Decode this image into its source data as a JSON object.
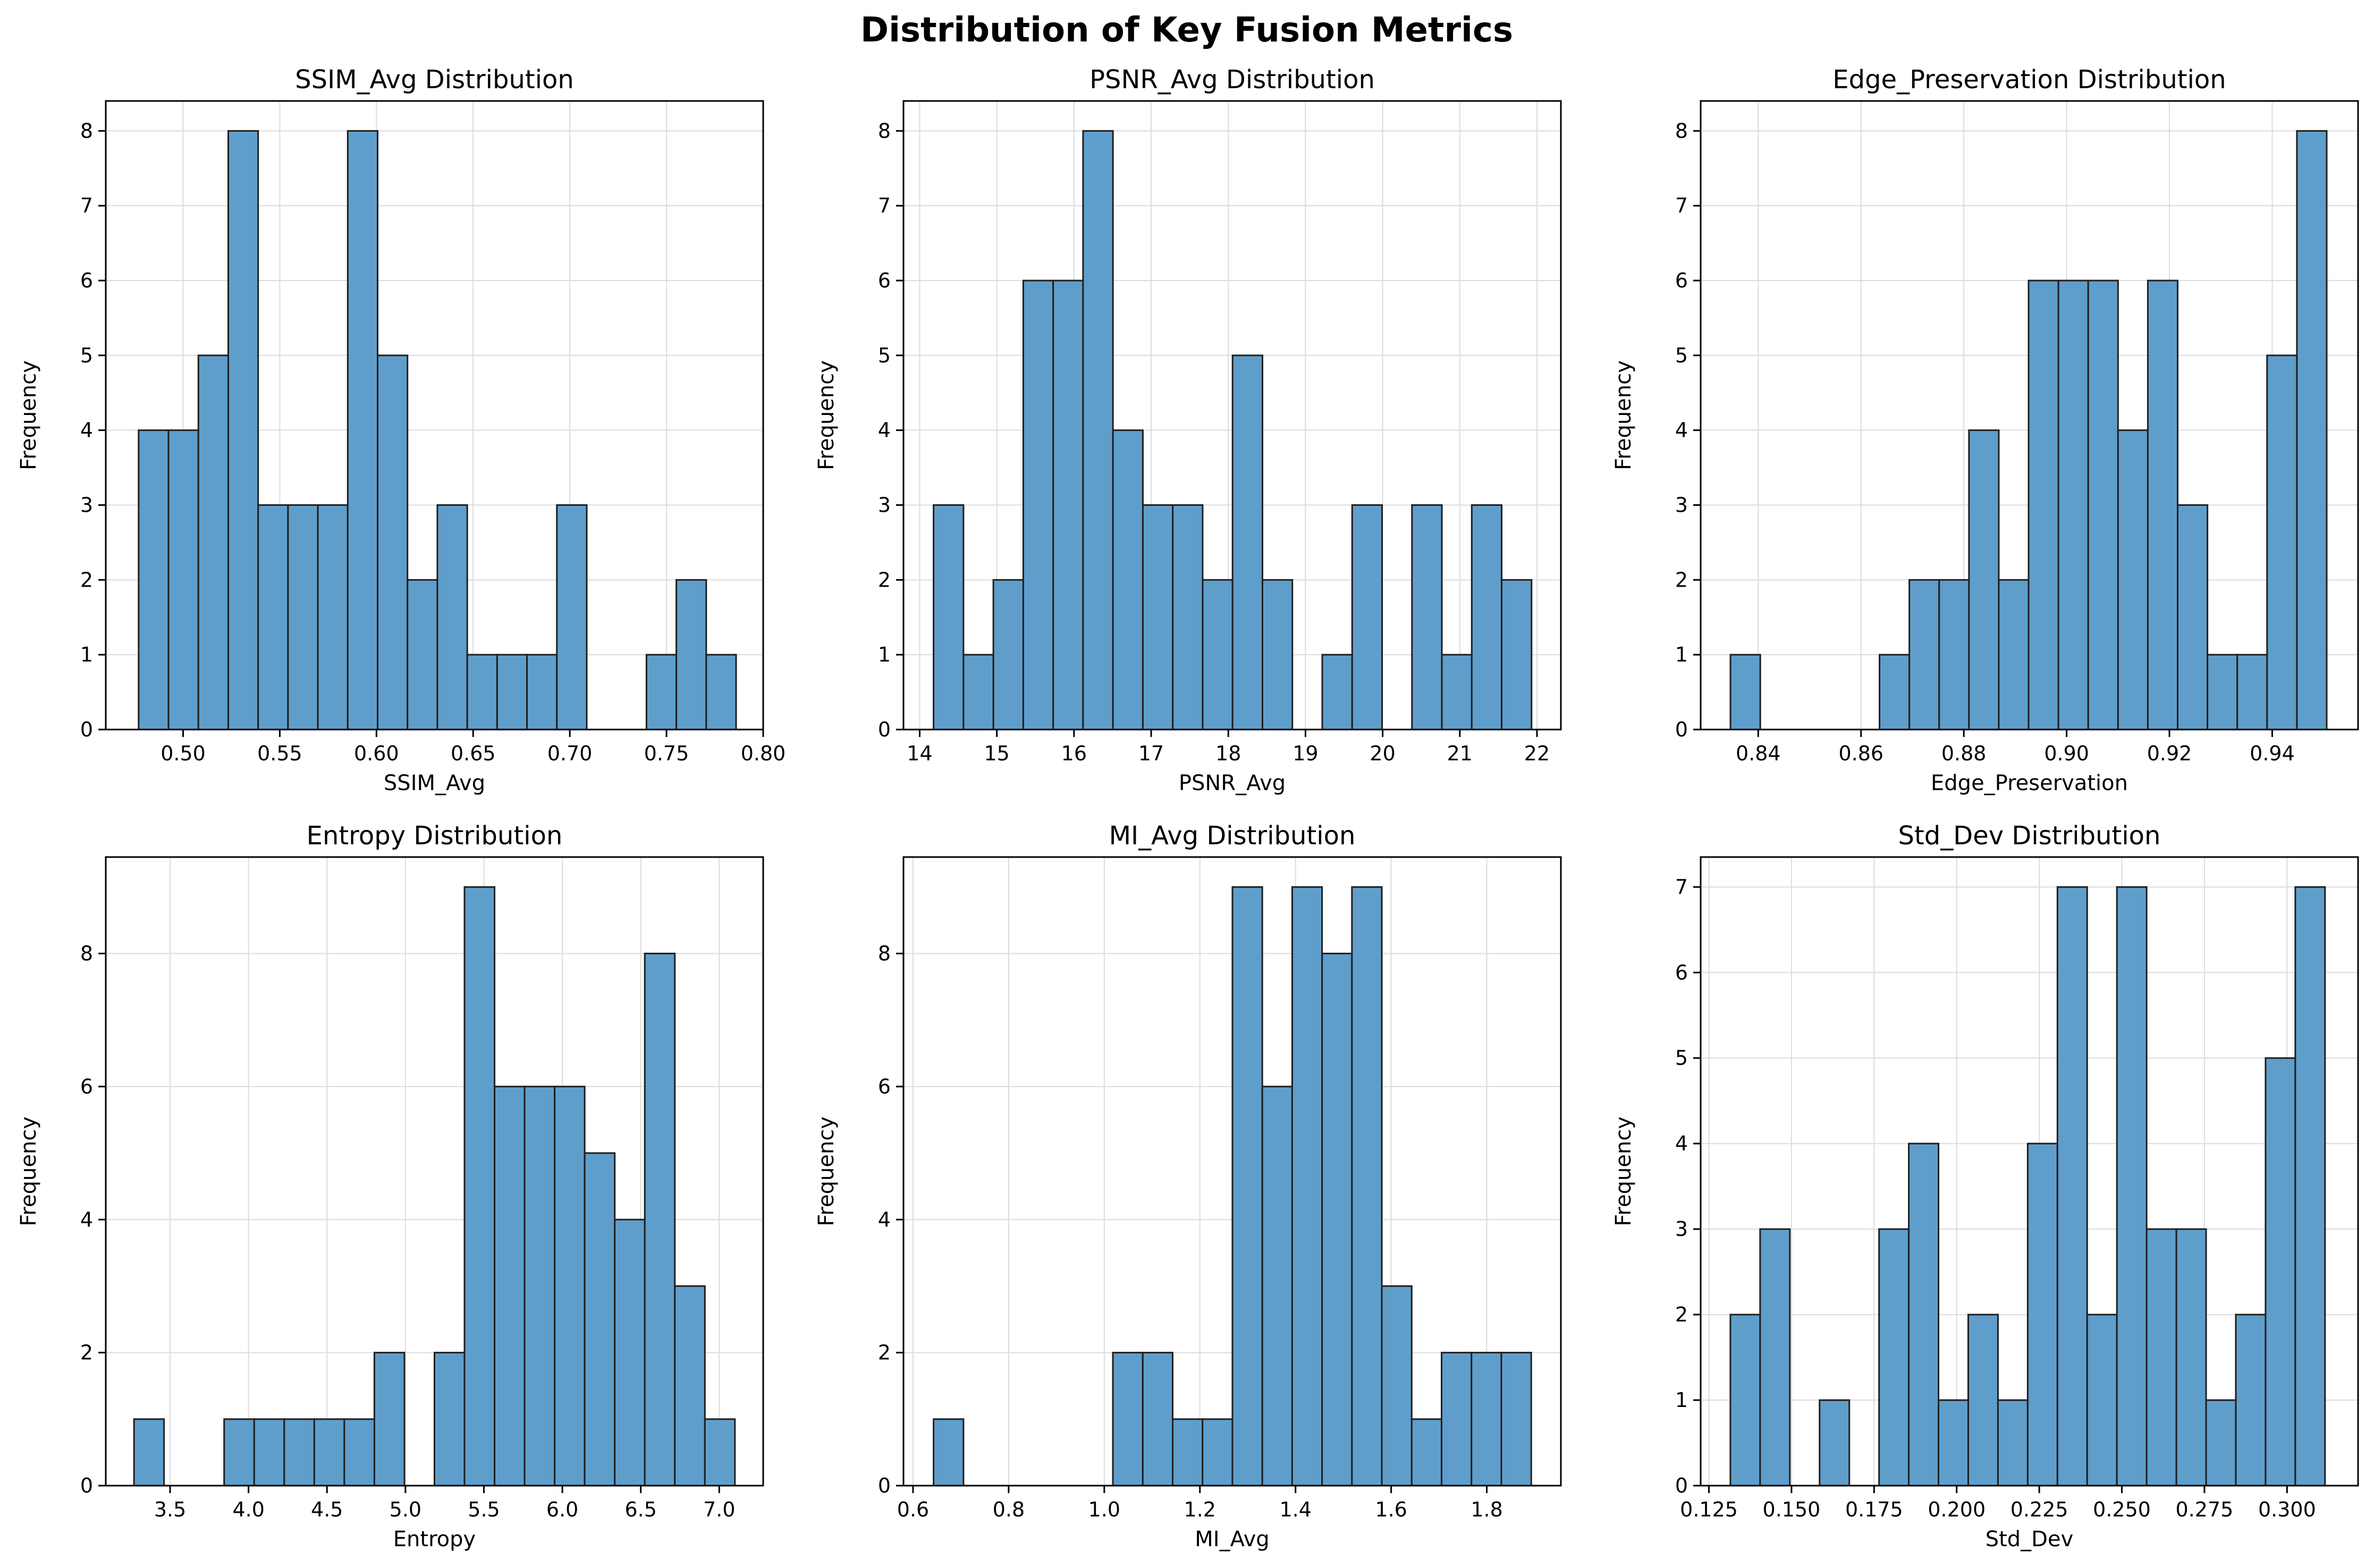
{
  "figure": {
    "title": "Distribution of Key Fusion Metrics"
  },
  "style": {
    "bar_color": "#5f9ecb",
    "bar_edge": "#1f1f1f",
    "grid_color": "#dcdcdc"
  },
  "chart_data": [
    {
      "type": "bar",
      "title": "SSIM_Avg Distribution",
      "xlabel": "SSIM_Avg",
      "ylabel": "Frequency",
      "xlim": [
        0.46,
        0.8
      ],
      "ylim": [
        0,
        8.4
      ],
      "xticks": [
        0.5,
        0.55,
        0.6,
        0.65,
        0.7,
        0.75,
        0.8
      ],
      "xtick_labels": [
        "0.50",
        "0.55",
        "0.60",
        "0.65",
        "0.70",
        "0.75",
        "0.80"
      ],
      "yticks": [
        0,
        1,
        2,
        3,
        4,
        5,
        6,
        7,
        8
      ],
      "bin_start": 0.477,
      "bin_width": 0.01545,
      "counts": [
        4,
        4,
        5,
        8,
        3,
        3,
        3,
        8,
        5,
        2,
        3,
        1,
        1,
        1,
        3,
        0,
        0,
        1,
        2,
        1
      ],
      "grid": true
    },
    {
      "type": "bar",
      "title": "PSNR_Avg Distribution",
      "xlabel": "PSNR_Avg",
      "ylabel": "Frequency",
      "xlim": [
        13.79,
        22.31
      ],
      "ylim": [
        0,
        8.4
      ],
      "xticks": [
        14,
        15,
        16,
        17,
        18,
        19,
        20,
        21,
        22
      ],
      "xtick_labels": [
        "14",
        "15",
        "16",
        "17",
        "18",
        "19",
        "20",
        "21",
        "22"
      ],
      "yticks": [
        0,
        1,
        2,
        3,
        4,
        5,
        6,
        7,
        8
      ],
      "bin_start": 14.18,
      "bin_width": 0.3875,
      "counts": [
        3,
        1,
        2,
        6,
        6,
        8,
        4,
        3,
        3,
        2,
        5,
        2,
        0,
        1,
        3,
        0,
        3,
        1,
        3,
        2
      ],
      "grid": true
    },
    {
      "type": "bar",
      "title": "Edge_Preservation Distribution",
      "xlabel": "Edge_Preservation",
      "ylabel": "Frequency",
      "xlim": [
        0.8288,
        0.9567
      ],
      "ylim": [
        0,
        8.4
      ],
      "xticks": [
        0.84,
        0.86,
        0.88,
        0.9,
        0.92,
        0.94
      ],
      "xtick_labels": [
        "0.84",
        "0.86",
        "0.88",
        "0.90",
        "0.92",
        "0.94"
      ],
      "yticks": [
        0,
        1,
        2,
        3,
        4,
        5,
        6,
        7,
        8
      ],
      "bin_start": 0.8346,
      "bin_width": 0.0058,
      "counts": [
        1,
        0,
        0,
        0,
        0,
        1,
        2,
        2,
        4,
        2,
        6,
        6,
        6,
        4,
        6,
        3,
        1,
        1,
        5,
        8
      ],
      "grid": true
    },
    {
      "type": "bar",
      "title": "Entropy Distribution",
      "xlabel": "Entropy",
      "ylabel": "Frequency",
      "xlim": [
        3.09,
        7.28
      ],
      "ylim": [
        0,
        9.45
      ],
      "xticks": [
        3.5,
        4.0,
        4.5,
        5.0,
        5.5,
        6.0,
        6.5,
        7.0
      ],
      "xtick_labels": [
        "3.5",
        "4.0",
        "4.5",
        "5.0",
        "5.5",
        "6.0",
        "6.5",
        "7.0"
      ],
      "yticks": [
        0,
        2,
        4,
        6,
        8
      ],
      "bin_start": 3.27,
      "bin_width": 0.1915,
      "counts": [
        1,
        0,
        0,
        1,
        1,
        1,
        1,
        1,
        2,
        0,
        2,
        9,
        6,
        6,
        6,
        5,
        4,
        8,
        3,
        1
      ],
      "grid": true
    },
    {
      "type": "bar",
      "title": "MI_Avg Distribution",
      "xlabel": "MI_Avg",
      "ylabel": "Frequency",
      "xlim": [
        0.58,
        1.955
      ],
      "ylim": [
        0,
        9.45
      ],
      "xticks": [
        0.6,
        0.8,
        1.0,
        1.2,
        1.4,
        1.6,
        1.8
      ],
      "xtick_labels": [
        "0.6",
        "0.8",
        "1.0",
        "1.2",
        "1.4",
        "1.6",
        "1.8"
      ],
      "yticks": [
        0,
        2,
        4,
        6,
        8
      ],
      "bin_start": 0.643,
      "bin_width": 0.0625,
      "counts": [
        1,
        0,
        0,
        0,
        0,
        0,
        2,
        2,
        1,
        1,
        9,
        6,
        9,
        8,
        9,
        3,
        1,
        2,
        2,
        2
      ],
      "grid": true
    },
    {
      "type": "bar",
      "title": "Std_Dev Distribution",
      "xlabel": "Std_Dev",
      "ylabel": "Frequency",
      "xlim": [
        0.1225,
        0.3215
      ],
      "ylim": [
        0,
        7.35
      ],
      "xticks": [
        0.125,
        0.15,
        0.175,
        0.2,
        0.225,
        0.25,
        0.275,
        0.3
      ],
      "xtick_labels": [
        "0.125",
        "0.150",
        "0.175",
        "0.200",
        "0.225",
        "0.250",
        "0.275",
        "0.300"
      ],
      "yticks": [
        0,
        1,
        2,
        3,
        4,
        5,
        6,
        7
      ],
      "bin_start": 0.1315,
      "bin_width": 0.009,
      "counts": [
        2,
        3,
        0,
        1,
        0,
        3,
        4,
        1,
        2,
        1,
        4,
        7,
        2,
        7,
        3,
        3,
        1,
        2,
        5,
        7
      ],
      "grid": true
    }
  ]
}
